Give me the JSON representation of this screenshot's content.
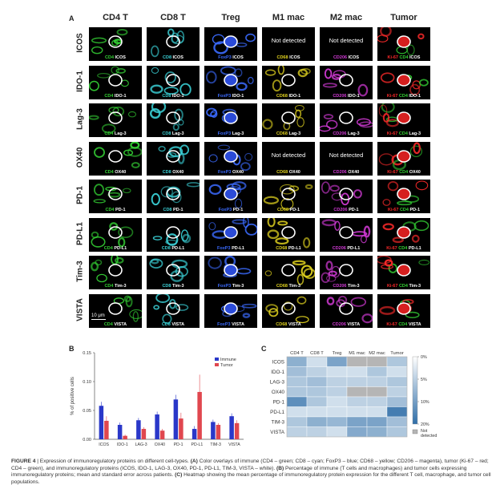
{
  "panels": {
    "a": "A",
    "b": "B",
    "c": "C"
  },
  "panelA": {
    "columns": [
      "CD4 T",
      "CD8 T",
      "Treg",
      "M1 mac",
      "M2 mac",
      "Tumor"
    ],
    "rows": [
      "ICOS",
      "IDO-1",
      "Lag-3",
      "OX40",
      "PD-1",
      "PD-L1",
      "Tim-3",
      "VISTA"
    ],
    "markers": [
      {
        "name": "CD4",
        "color": "#34d134"
      },
      {
        "name": "CD8",
        "color": "#3ad0d6"
      },
      {
        "name": "FoxP3",
        "color": "#3b6bff"
      },
      {
        "name": "CD68",
        "color": "#e0d21f"
      },
      {
        "name": "CD206",
        "color": "#d23ad6"
      },
      {
        "name": "Ki-67",
        "color": "#ff2a2a"
      }
    ],
    "not_detected_text": "Not detected",
    "scale_bar": "10 μm",
    "cell_labels": [
      [
        "ICOS",
        "ICOS",
        "ICOS",
        "ICOS",
        "ICOS",
        "ICOS"
      ],
      [
        "IDO-1",
        "IDO-1",
        "IDO-1",
        "IDO-1",
        "IDO-1",
        "IDO-1"
      ],
      [
        "Lag-3",
        "Lag-3",
        "Lag-3",
        "Lag-3",
        "Lag-3",
        "Lag-3"
      ],
      [
        "OX40",
        "OX40",
        "OX40",
        "OX40",
        "OX40",
        "OX40"
      ],
      [
        "PD-1",
        "PD-1",
        "PD-1",
        "PD-1",
        "PD-1",
        "PD-1"
      ],
      [
        "PD-L1",
        "PD-L1",
        "PD-L1",
        "PD-L1",
        "PD-L1",
        "PD-L1"
      ],
      [
        "Tim-3",
        "Tim-3",
        "Tim-3",
        "Tim-3",
        "Tim-3",
        "Tim-3"
      ],
      [
        "VISTA",
        "VISTA",
        "VISTA",
        "VISTA",
        "VISTA",
        "VISTA"
      ]
    ],
    "not_detected_cells": [
      [
        0,
        3
      ],
      [
        0,
        4
      ],
      [
        3,
        3
      ],
      [
        3,
        4
      ]
    ]
  },
  "chart_data": [
    {
      "type": "bar",
      "categories": [
        "ICOS",
        "IDO-1",
        "LAG-3",
        "OX40",
        "PD-1",
        "PD-L1",
        "TIM-3",
        "VISTA"
      ],
      "series": [
        {
          "name": "Immune",
          "color": "#2a38c9",
          "values": [
            0.058,
            0.025,
            0.033,
            0.043,
            0.069,
            0.018,
            0.03,
            0.04
          ],
          "errors": [
            0.007,
            0.004,
            0.004,
            0.005,
            0.008,
            0.005,
            0.004,
            0.005
          ]
        },
        {
          "name": "Tumor",
          "color": "#e0474f",
          "values": [
            0.032,
            0.006,
            0.018,
            0.015,
            0.036,
            0.082,
            0.025,
            0.028
          ],
          "errors": [
            0.008,
            0.002,
            0.003,
            0.003,
            0.01,
            0.03,
            0.003,
            0.005
          ]
        }
      ],
      "ylabel": "% of positive cells",
      "ylim": [
        0,
        0.15
      ],
      "yticks": [
        "0.00",
        "0.05",
        "0.10",
        "0.15"
      ],
      "legend": "top-right"
    },
    {
      "type": "heatmap",
      "columns": [
        "CD4 T",
        "CD8 T",
        "Treg",
        "M1 mac",
        "M2 mac",
        "Tumor"
      ],
      "rows": [
        "ICOS",
        "IDO-1",
        "LAG-3",
        "OX40",
        "PD-1",
        "PD-L1",
        "TIM-3",
        "VISTA"
      ],
      "values": [
        [
          6,
          1,
          8,
          null,
          null,
          3
        ],
        [
          4,
          2,
          1,
          1,
          3,
          1
        ],
        [
          3,
          4,
          2,
          2,
          2,
          3
        ],
        [
          3,
          3,
          2,
          null,
          null,
          2
        ],
        [
          12,
          3,
          1,
          2,
          2,
          4
        ],
        [
          1,
          1,
          1,
          1,
          1,
          16
        ],
        [
          3,
          6,
          5,
          8,
          8,
          4
        ],
        [
          2,
          2,
          1,
          7,
          6,
          3
        ]
      ],
      "colorbar_ticks": [
        "0%",
        "5%",
        "10%",
        "20%"
      ],
      "not_detected_label": "Not detected",
      "colors": {
        "low": "#ffffff",
        "high": "#2f6ea8",
        "na": "#b5b5b5"
      }
    }
  ],
  "caption": {
    "label": "FIGURE 4",
    "text1": " | Expression of immunoregulatory proteins on different cell-types. ",
    "a": "(A)",
    "text2": " Color overlays of immune (CD4 – green; CD8 – cyan; FoxP3 – blue; CD68 – yellow; CD206 – magenta), tumor (Ki-67 – red; CD4 – green), and immunoregulatory proteins (ICOS, IDO-1, LAG-3, OX40, PD-1, PD-L1, TIM-3, VISTA – white). ",
    "b": "(B)",
    "text3": " Percentage of immune (T cells and macrophages) and tumor cells expressing immunoregulatory proteins; mean and standard error across patients. ",
    "c": "(C)",
    "text4": " Heatmap showing the mean percentage of immunoregulatory protein expression for the different T cell, macrophage, and tumor cell populations."
  }
}
